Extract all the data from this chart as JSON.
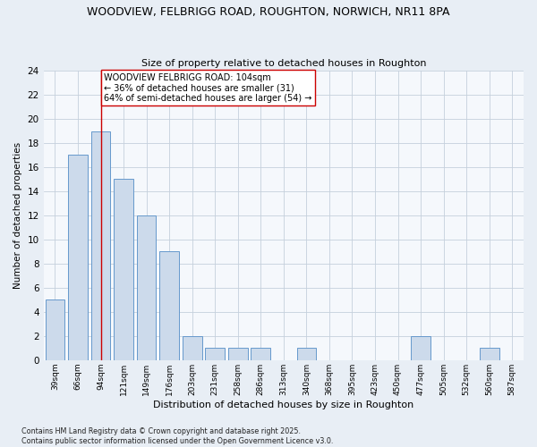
{
  "title_line1": "WOODVIEW, FELBRIGG ROAD, ROUGHTON, NORWICH, NR11 8PA",
  "title_line2": "Size of property relative to detached houses in Roughton",
  "xlabel": "Distribution of detached houses by size in Roughton",
  "ylabel": "Number of detached properties",
  "categories": [
    "39sqm",
    "66sqm",
    "94sqm",
    "121sqm",
    "149sqm",
    "176sqm",
    "203sqm",
    "231sqm",
    "258sqm",
    "286sqm",
    "313sqm",
    "340sqm",
    "368sqm",
    "395sqm",
    "423sqm",
    "450sqm",
    "477sqm",
    "505sqm",
    "532sqm",
    "560sqm",
    "587sqm"
  ],
  "values": [
    5,
    17,
    19,
    15,
    12,
    9,
    2,
    1,
    1,
    1,
    0,
    1,
    0,
    0,
    0,
    0,
    2,
    0,
    0,
    1,
    0
  ],
  "bar_color": "#ccdaeb",
  "bar_edge_color": "#6699cc",
  "ylim": [
    0,
    24
  ],
  "yticks": [
    0,
    2,
    4,
    6,
    8,
    10,
    12,
    14,
    16,
    18,
    20,
    22,
    24
  ],
  "vline_x_index": 2,
  "vline_color": "#cc0000",
  "annotation_text": "WOODVIEW FELBRIGG ROAD: 104sqm\n← 36% of detached houses are smaller (31)\n64% of semi-detached houses are larger (54) →",
  "annotation_box_color": "white",
  "annotation_box_edge": "#cc0000",
  "footnote": "Contains HM Land Registry data © Crown copyright and database right 2025.\nContains public sector information licensed under the Open Government Licence v3.0.",
  "bg_color": "#e8eef5",
  "plot_bg_color": "#f5f8fc",
  "grid_color": "#c5d0dc"
}
